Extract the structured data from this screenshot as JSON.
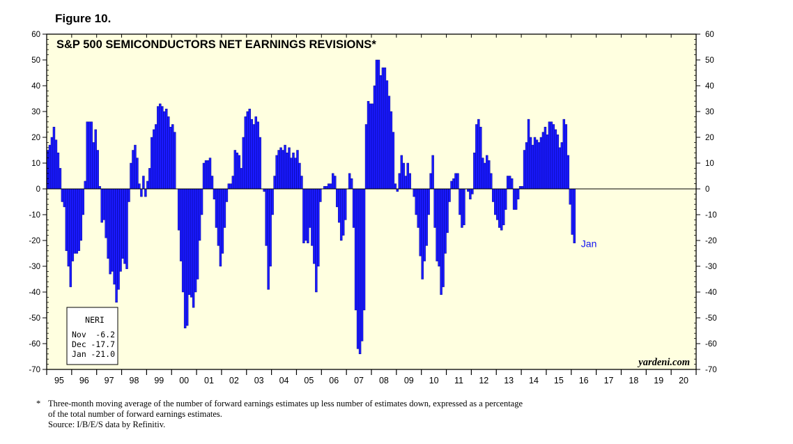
{
  "figure_label": "Figure 10.",
  "footnote": {
    "marker": "*",
    "line1": "Three-month moving average of the number of forward earnings estimates up less number of estimates down, expressed as a percentage",
    "line2": "of the total number of forward earnings estimates.",
    "source": "Source: I/B/E/S data by Refinitiv."
  },
  "colors": {
    "plot_bg": "#FFFFE0",
    "bar_fill": "#1A1AFF",
    "bar_edge": "#00008B",
    "label_blue": "#1010F0"
  },
  "chart_data": {
    "type": "bar",
    "title": "S&P 500 SEMICONDUCTORS NET EARNINGS REVISIONS*",
    "xlabel": "",
    "ylabel": "",
    "ylim": [
      -70,
      60
    ],
    "yticks": [
      60,
      50,
      40,
      30,
      20,
      10,
      0,
      -10,
      -20,
      -30,
      -40,
      -50,
      -60,
      -70
    ],
    "xlim": [
      1995.0,
      2021.0
    ],
    "xticks": [
      {
        "x": 1995.5,
        "label": "95"
      },
      {
        "x": 1996.5,
        "label": "96"
      },
      {
        "x": 1997.5,
        "label": "97"
      },
      {
        "x": 1998.5,
        "label": "98"
      },
      {
        "x": 1999.5,
        "label": "99"
      },
      {
        "x": 2000.5,
        "label": "00"
      },
      {
        "x": 2001.5,
        "label": "01"
      },
      {
        "x": 2002.5,
        "label": "02"
      },
      {
        "x": 2003.5,
        "label": "03"
      },
      {
        "x": 2004.5,
        "label": "04"
      },
      {
        "x": 2005.5,
        "label": "05"
      },
      {
        "x": 2006.5,
        "label": "06"
      },
      {
        "x": 2007.5,
        "label": "07"
      },
      {
        "x": 2008.5,
        "label": "08"
      },
      {
        "x": 2009.5,
        "label": "09"
      },
      {
        "x": 2010.5,
        "label": "10"
      },
      {
        "x": 2011.5,
        "label": "11"
      },
      {
        "x": 2012.5,
        "label": "12"
      },
      {
        "x": 2013.5,
        "label": "13"
      },
      {
        "x": 2014.5,
        "label": "14"
      },
      {
        "x": 2015.5,
        "label": "15"
      },
      {
        "x": 2016.5,
        "label": "16"
      },
      {
        "x": 2017.5,
        "label": "17"
      },
      {
        "x": 2018.5,
        "label": "18"
      },
      {
        "x": 2019.5,
        "label": "19"
      },
      {
        "x": 2020.5,
        "label": "20"
      }
    ],
    "grid": false,
    "series": [
      {
        "start": "1995-01",
        "frequency": "monthly",
        "values": [
          15,
          17,
          20,
          24,
          19,
          14,
          8,
          -5,
          -7,
          -24,
          -30,
          -38,
          -28,
          -25,
          -25,
          -24,
          -20,
          -10,
          3,
          26,
          26,
          26,
          18,
          23,
          15,
          1,
          -13,
          -12,
          -19,
          -27,
          -33,
          -32,
          -37,
          -44,
          -39,
          -32,
          -27,
          -29,
          -31,
          -5,
          10,
          15,
          17,
          12,
          2,
          -3,
          5,
          -3,
          3,
          8,
          20,
          23,
          25,
          32,
          33,
          32,
          30,
          31,
          28,
          24,
          25,
          22,
          0,
          -16,
          -28,
          -40,
          -54,
          -53,
          -41,
          -42,
          -46,
          -40,
          -35,
          -20,
          -10,
          10,
          11,
          11,
          12,
          5,
          -4,
          -15,
          -22,
          -30,
          -25,
          -15,
          -5,
          2,
          2,
          5,
          15,
          14,
          13,
          8,
          20,
          28,
          30,
          31,
          27,
          25,
          28,
          26,
          20,
          0,
          -1,
          -22,
          -39,
          -30,
          -10,
          5,
          13,
          15,
          16,
          15,
          17,
          14,
          16,
          12,
          14,
          12,
          15,
          10,
          5,
          -21,
          -20,
          -21,
          -15,
          -22,
          -29,
          -40,
          -30,
          -5,
          0,
          1,
          1,
          2,
          2,
          6,
          5,
          -7,
          -13,
          -20,
          -18,
          -12,
          0,
          6,
          4,
          -15,
          -47,
          -62,
          -64,
          -59,
          -47,
          25,
          34,
          33,
          33,
          40,
          50,
          50,
          44,
          47,
          47,
          42,
          36,
          30,
          22,
          2,
          -1,
          6,
          13,
          10,
          5,
          10,
          6,
          0,
          -3,
          -10,
          -15,
          -26,
          -35,
          -28,
          -22,
          -10,
          6,
          13,
          -15,
          -28,
          -30,
          -41,
          -38,
          -25,
          -17,
          -5,
          3,
          4,
          6,
          6,
          -10,
          -15,
          -14,
          0,
          -1,
          -4,
          -2,
          14,
          25,
          27,
          24,
          12,
          10,
          13,
          11,
          6,
          -5,
          -10,
          -12,
          -15,
          -16,
          -14,
          -8,
          5,
          5,
          4,
          -8,
          -8,
          -4,
          1,
          1,
          15,
          18,
          27,
          20,
          17,
          20,
          19,
          18,
          20,
          22,
          24,
          21,
          26,
          26,
          25,
          23,
          21,
          16,
          18,
          27,
          25,
          13,
          -6,
          -17.7,
          -21
        ]
      }
    ],
    "end_label": "Jan",
    "legend": {
      "title": "NERI",
      "rows": [
        {
          "month": "Nov",
          "value": "-6.2"
        },
        {
          "month": "Dec",
          "value": "-17.7"
        },
        {
          "month": "Jan",
          "value": "-21.0"
        }
      ],
      "placement": "bottom-left"
    },
    "watermark": "yardeni.com"
  }
}
